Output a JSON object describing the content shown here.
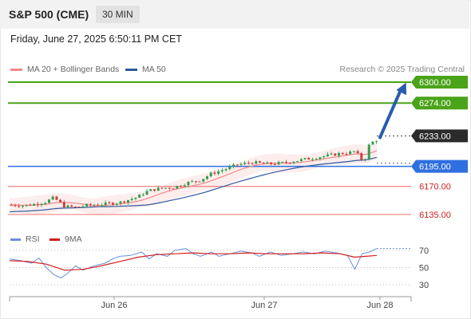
{
  "header": {
    "title": "S&P 500 (CME)",
    "timeframe": "30 MIN"
  },
  "datetime": "Friday, June 27, 2025 6:50:11 PM CET",
  "legend": {
    "ma20_label": "MA 20 + Bollinger Bands",
    "ma50_label": "MA 50",
    "rsi_label": "RSI",
    "rsi_ma_label": "9MA",
    "credit": "Research © 2025 Trading Central"
  },
  "colors": {
    "ma20": "#f08a8a",
    "ma50": "#2f5a9e",
    "resistance": "#4aa319",
    "pivot": "#2f6fe0",
    "support": "#f08080",
    "support_text": "#cc2222",
    "last_price_bg": "#2b2b2b",
    "up_candle": "#2f9e4a",
    "down_candle": "#d23c3c",
    "arrow": "#2a5caa",
    "rsi": "#6a8fdc",
    "rsi_ma": "#d21e1e"
  },
  "chart_data": [
    {
      "type": "candlestick",
      "x_labels": [
        "Jun 26",
        "Jun 27",
        "Jun 28"
      ],
      "ylim": [
        6120,
        6310
      ],
      "levels": [
        {
          "value": 6300.0,
          "label": "6300.00",
          "kind": "resistance"
        },
        {
          "value": 6274.0,
          "label": "6274.00",
          "kind": "resistance"
        },
        {
          "value": 6233.0,
          "label": "6233.00",
          "kind": "last"
        },
        {
          "value": 6195.0,
          "label": "6195.00",
          "kind": "pivot"
        },
        {
          "value": 6170.0,
          "label": "6170.00",
          "kind": "support"
        },
        {
          "value": 6135.0,
          "label": "6135.00",
          "kind": "support"
        }
      ],
      "close_path": [
        [
          0,
          6147
        ],
        [
          8,
          6146
        ],
        [
          14,
          6148
        ],
        [
          20,
          6151
        ],
        [
          24,
          6156
        ],
        [
          30,
          6145
        ],
        [
          36,
          6144
        ],
        [
          44,
          6147
        ],
        [
          52,
          6148
        ],
        [
          60,
          6150
        ],
        [
          70,
          6157
        ],
        [
          74,
          6163
        ],
        [
          78,
          6166
        ],
        [
          84,
          6168
        ],
        [
          90,
          6169
        ],
        [
          96,
          6174
        ],
        [
          104,
          6178
        ],
        [
          110,
          6186
        ],
        [
          118,
          6192
        ],
        [
          124,
          6197
        ],
        [
          132,
          6200
        ],
        [
          140,
          6198
        ],
        [
          148,
          6199
        ],
        [
          156,
          6202
        ],
        [
          164,
          6205
        ],
        [
          172,
          6208
        ],
        [
          180,
          6211
        ],
        [
          185,
          6212
        ],
        [
          188,
          6214
        ],
        [
          193,
          6200
        ],
        [
          196,
          6223
        ],
        [
          200,
          6228
        ]
      ],
      "projection": {
        "from": 6233,
        "to": 6300
      }
    },
    {
      "type": "line",
      "name": "RSI",
      "y_ticks": [
        70,
        50,
        30
      ],
      "ylim": [
        20,
        80
      ],
      "rsi": [
        [
          0,
          60
        ],
        [
          6,
          58
        ],
        [
          12,
          55
        ],
        [
          16,
          61
        ],
        [
          20,
          50
        ],
        [
          24,
          42
        ],
        [
          28,
          38
        ],
        [
          32,
          44
        ],
        [
          36,
          52
        ],
        [
          40,
          47
        ],
        [
          46,
          52
        ],
        [
          52,
          55
        ],
        [
          56,
          60
        ],
        [
          60,
          63
        ],
        [
          66,
          64
        ],
        [
          72,
          68
        ],
        [
          76,
          60
        ],
        [
          80,
          66
        ],
        [
          86,
          63
        ],
        [
          90,
          70
        ],
        [
          96,
          72
        ],
        [
          100,
          66
        ],
        [
          104,
          63
        ],
        [
          110,
          68
        ],
        [
          114,
          63
        ],
        [
          120,
          66
        ],
        [
          126,
          69
        ],
        [
          132,
          67
        ],
        [
          136,
          63
        ],
        [
          142,
          68
        ],
        [
          148,
          64
        ],
        [
          154,
          66
        ],
        [
          160,
          68
        ],
        [
          166,
          66
        ],
        [
          172,
          69
        ],
        [
          178,
          67
        ],
        [
          184,
          64
        ],
        [
          188,
          48
        ],
        [
          192,
          66
        ],
        [
          196,
          68
        ],
        [
          200,
          72
        ]
      ],
      "rsi_ma": [
        [
          0,
          58
        ],
        [
          10,
          57
        ],
        [
          20,
          54
        ],
        [
          30,
          47
        ],
        [
          40,
          48
        ],
        [
          50,
          52
        ],
        [
          60,
          57
        ],
        [
          70,
          62
        ],
        [
          80,
          65
        ],
        [
          90,
          66
        ],
        [
          100,
          67
        ],
        [
          110,
          66
        ],
        [
          120,
          66
        ],
        [
          130,
          67
        ],
        [
          140,
          66
        ],
        [
          150,
          66
        ],
        [
          160,
          66
        ],
        [
          170,
          67
        ],
        [
          180,
          66
        ],
        [
          188,
          62
        ],
        [
          194,
          63
        ],
        [
          200,
          64
        ]
      ]
    }
  ]
}
